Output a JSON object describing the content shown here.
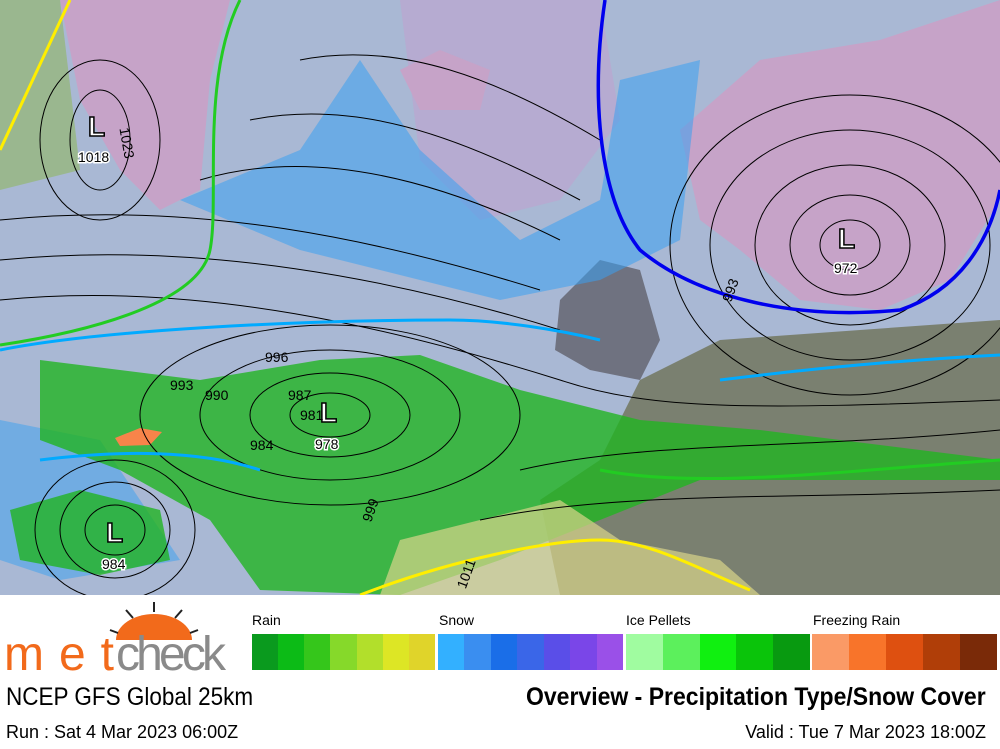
{
  "map": {
    "lows": [
      {
        "label": "L",
        "value": "1018"
      },
      {
        "label": "L",
        "value": "978"
      },
      {
        "label": "L",
        "value": "984"
      },
      {
        "label": "L",
        "value": "972"
      }
    ],
    "isobar_labels": [
      "1023",
      "993",
      "990",
      "996",
      "984",
      "987",
      "999",
      "1011",
      "993",
      "981"
    ],
    "colors": {
      "ocean": "#a9b8d4",
      "land": "#6f7280",
      "snow_cover": "#c6a3c8",
      "rain": "#22b422",
      "snow": "#3aa0f0",
      "warm_front": "#ffee00",
      "freeze_line": "#00aaff",
      "uk_contour": "#0000ee",
      "green_line": "#22cc22"
    }
  },
  "logo": {
    "brand": "metcheck",
    "brand_part1": "met",
    "brand_part2": "check"
  },
  "legend": [
    {
      "label": "Rain",
      "colors": [
        "#0a9a1e",
        "#0cbb16",
        "#35c61b",
        "#86d92a",
        "#b2df2b",
        "#dde625",
        "#e0d42a"
      ]
    },
    {
      "label": "Snow",
      "colors": [
        "#33b0ff",
        "#3a8ef0",
        "#1a6ee8",
        "#3a66e8",
        "#5a4ee8",
        "#7a46e8",
        "#9a50e8"
      ]
    },
    {
      "label": "Ice Pellets",
      "colors": [
        "#a0fca0",
        "#5cf05c",
        "#10f010",
        "#0ac40a",
        "#089a10"
      ]
    },
    {
      "label": "Freezing Rain",
      "colors": [
        "#fa9a66",
        "#f8742a",
        "#de5010",
        "#b03e08",
        "#7a2a08"
      ]
    }
  ],
  "footer": {
    "model": "NCEP GFS Global 25km",
    "title": "Overview - Precipitation Type/Snow Cover",
    "run": "Run : Sat 4 Mar 2023 06:00Z",
    "valid": "Valid : Tue 7 Mar 2023 18:00Z"
  }
}
